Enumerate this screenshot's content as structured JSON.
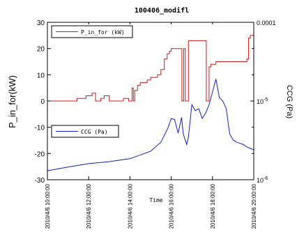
{
  "chart_data": {
    "type": "line",
    "title": "100406_modifl",
    "xlabel": "Time",
    "y1label": "P_in_for(kW)",
    "y2label": "CCG (Pa)",
    "x_ticks": [
      "2010/4/6 10:00:00",
      "2010/4/6 12:00:00",
      "2010/4/6 14:00:00",
      "2010/4/6 16:00:00",
      "2010/4/6 18:00:00",
      "2010/4/6 20:00:00"
    ],
    "xlim": [
      "2010/4/6 10:00:00",
      "2010/4/6 20:00:00"
    ],
    "y1lim": [
      -30,
      30
    ],
    "y1_ticks": [
      "-30",
      "-20",
      "-10",
      "0",
      "10",
      "20",
      "30"
    ],
    "y2lim": [
      1e-06,
      0.0001
    ],
    "y2_scale": "log",
    "y2_ticks": [
      "10-6",
      "10-5",
      "0.0001"
    ],
    "legend_placement": "inside",
    "series": [
      {
        "name": "P_in_for (kW)",
        "axis": "left",
        "color": "#d01818",
        "x": [
          "10:00",
          "11:25",
          "11:26",
          "11:50",
          "11:52",
          "12:05",
          "12:10",
          "12:15",
          "12:20",
          "12:30",
          "12:35",
          "12:40",
          "12:45",
          "12:55",
          "13:00",
          "13:40",
          "13:41",
          "13:55",
          "13:56",
          "14:05",
          "14:06",
          "14:10",
          "14:12",
          "14:14",
          "14:20",
          "14:22",
          "14:30",
          "14:50",
          "15:00",
          "15:20",
          "15:30",
          "15:40",
          "15:48",
          "15:55",
          "16:00",
          "16:10",
          "16:20",
          "16:30",
          "16:31",
          "16:34",
          "16:36",
          "16:40",
          "16:41",
          "16:45",
          "16:50",
          "16:52",
          "16:56",
          "17:00",
          "17:40",
          "17:42",
          "17:48",
          "17:50",
          "17:55",
          "17:58",
          "18:05",
          "18:10",
          "18:20",
          "18:40",
          "19:20",
          "19:40",
          "19:45",
          "19:50",
          "20:00"
        ],
        "y": [
          0,
          0,
          1,
          1,
          2,
          2,
          3,
          3,
          0,
          0,
          1,
          1,
          2,
          2,
          0,
          0,
          1,
          1,
          0,
          0,
          5,
          0,
          0,
          4,
          4,
          6,
          7,
          8,
          9,
          10,
          12,
          16,
          18,
          19,
          20,
          20,
          20,
          20,
          0,
          0,
          20,
          20,
          0,
          0,
          23,
          23,
          23,
          23,
          23,
          0,
          0,
          13,
          14,
          14,
          14,
          15,
          15,
          15,
          15,
          16,
          24,
          25,
          25
        ]
      },
      {
        "name": "CCG (Pa)",
        "axis": "right",
        "color": "#1020c0",
        "x": [
          "10:00",
          "11:00",
          "12:00",
          "13:00",
          "14:00",
          "15:00",
          "15:30",
          "15:50",
          "16:00",
          "16:10",
          "16:20",
          "16:30",
          "16:35",
          "16:45",
          "16:50",
          "17:00",
          "17:10",
          "17:20",
          "17:30",
          "17:40",
          "17:50",
          "18:00",
          "18:10",
          "18:20",
          "18:30",
          "18:40",
          "18:50",
          "19:00",
          "19:10",
          "19:20",
          "19:30",
          "19:40",
          "19:50",
          "20:00"
        ],
        "y": [
          1.3e-06,
          1.45e-06,
          1.6e-06,
          1.7e-06,
          1.85e-06,
          2.3e-06,
          3e-06,
          4.5e-06,
          6e-06,
          5.8e-06,
          3.9e-06,
          6.2e-06,
          3.8e-06,
          2.8e-06,
          3.5e-06,
          9e-06,
          7.5e-06,
          8e-06,
          6e-06,
          7e-06,
          9e-06,
          1.3e-05,
          1.9e-05,
          1.1e-05,
          1e-05,
          8e-06,
          3.8e-06,
          3.2e-06,
          3e-06,
          2.9e-06,
          2.8e-06,
          2.6e-06,
          2.5e-06,
          2.4e-06
        ]
      }
    ]
  }
}
